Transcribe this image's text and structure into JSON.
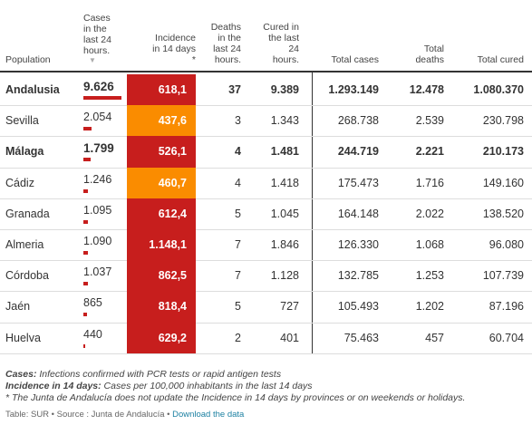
{
  "table": {
    "headers": [
      "Population",
      "Cases in the last 24 hours.",
      "Incidence in 14 days *",
      "Deaths in the last 24 hours.",
      "Cured in the last 24 hours.",
      "Total cases",
      "Total deaths",
      "Total cured"
    ],
    "sort_marker": "▼",
    "rows": [
      {
        "cells": [
          "Andalusia",
          "9.626",
          "618,1",
          "37",
          "9.389",
          "1.293.149",
          "12.478",
          "1.080.370"
        ],
        "bold": true,
        "incidence_color": "#c71e1d"
      },
      {
        "cells": [
          "Sevilla",
          "2.054",
          "437,6",
          "3",
          "1.343",
          "268.738",
          "2.539",
          "230.798"
        ],
        "bold": false,
        "incidence_color": "#fa8c00"
      },
      {
        "cells": [
          "Málaga",
          "1.799",
          "526,1",
          "4",
          "1.481",
          "244.719",
          "2.221",
          "210.173"
        ],
        "bold": true,
        "incidence_color": "#c71e1d"
      },
      {
        "cells": [
          "Cádiz",
          "1.246",
          "460,7",
          "4",
          "1.418",
          "175.473",
          "1.716",
          "149.160"
        ],
        "bold": false,
        "incidence_color": "#fa8c00"
      },
      {
        "cells": [
          "Granada",
          "1.095",
          "612,4",
          "5",
          "1.045",
          "164.148",
          "2.022",
          "138.520"
        ],
        "bold": false,
        "incidence_color": "#c71e1d"
      },
      {
        "cells": [
          "Almeria",
          "1.090",
          "1.148,1",
          "7",
          "1.846",
          "126.330",
          "1.068",
          "96.080"
        ],
        "bold": false,
        "incidence_color": "#c71e1d"
      },
      {
        "cells": [
          "Córdoba",
          "1.037",
          "862,5",
          "7",
          "1.128",
          "132.785",
          "1.253",
          "107.739"
        ],
        "bold": false,
        "incidence_color": "#c71e1d"
      },
      {
        "cells": [
          "Jaén",
          "865",
          "818,4",
          "5",
          "727",
          "105.493",
          "1.202",
          "87.196"
        ],
        "bold": false,
        "incidence_color": "#c71e1d"
      },
      {
        "cells": [
          "Huelva",
          "440",
          "629,2",
          "2",
          "401",
          "75.463",
          "457",
          "60.704"
        ],
        "bold": false,
        "incidence_color": "#c71e1d"
      }
    ],
    "bar_color": "#c71e1d"
  },
  "notes": [
    {
      "label": "Cases:",
      "text": " Infections confirmed with PCR tests or rapid antigen tests"
    },
    {
      "label": "Incidence in 14 days:",
      "text": " Cases per 100,000 inhabitants in the last 14 days"
    },
    {
      "label": "",
      "text": "* The Junta de Andalucía does not update the Incidence in 14 days by provinces or on weekends or holidays."
    }
  ],
  "source": {
    "text": "Table: SUR • Source : Junta de Andalucía • ",
    "link": "Download the data"
  }
}
